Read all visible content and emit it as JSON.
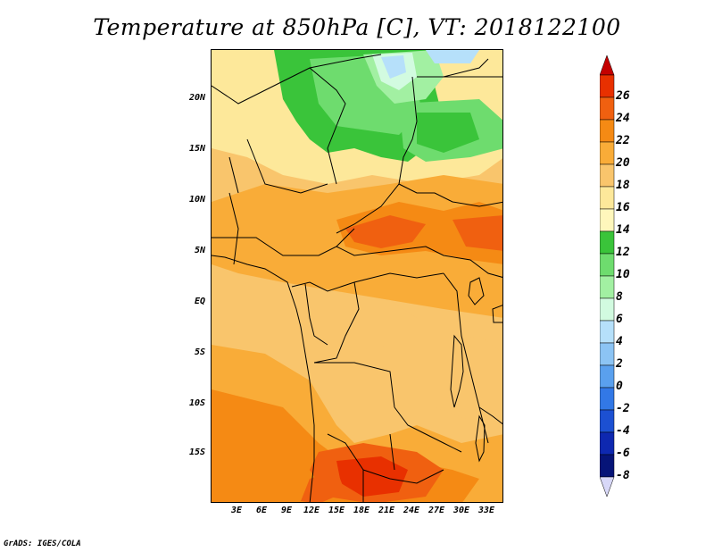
{
  "title": "Temperature at 850hPa [C], VT: 2018122100",
  "footer": "GrADS: IGES/COLA",
  "map": {
    "lat_labels": [
      "20N",
      "15N",
      "10N",
      "5N",
      "EQ",
      "5S",
      "10S",
      "15S"
    ],
    "lon_labels": [
      "3E",
      "6E",
      "9E",
      "12E",
      "15E",
      "18E",
      "21E",
      "24E",
      "27E",
      "30E",
      "33E"
    ]
  },
  "colorbar": {
    "labels": [
      "26",
      "24",
      "22",
      "20",
      "18",
      "16",
      "14",
      "12",
      "10",
      "8",
      "6",
      "4",
      "2",
      "0",
      "-2",
      "-4",
      "-6",
      "-8"
    ],
    "colors": [
      "#c40000",
      "#e83000",
      "#f06010",
      "#f58a14",
      "#f9ac38",
      "#f9c56c",
      "#fde89a",
      "#fff7bc",
      "#3ac43a",
      "#6edc6e",
      "#a2f0a2",
      "#d2fbe0",
      "#b6e0fa",
      "#8cc4f4",
      "#5aa0ee",
      "#3278e6",
      "#1c50d2",
      "#0e28b0",
      "#061478",
      "#d8d8f8"
    ],
    "tip_top_color": "#c40000",
    "tip_bottom_color": "#d8d8f8"
  }
}
